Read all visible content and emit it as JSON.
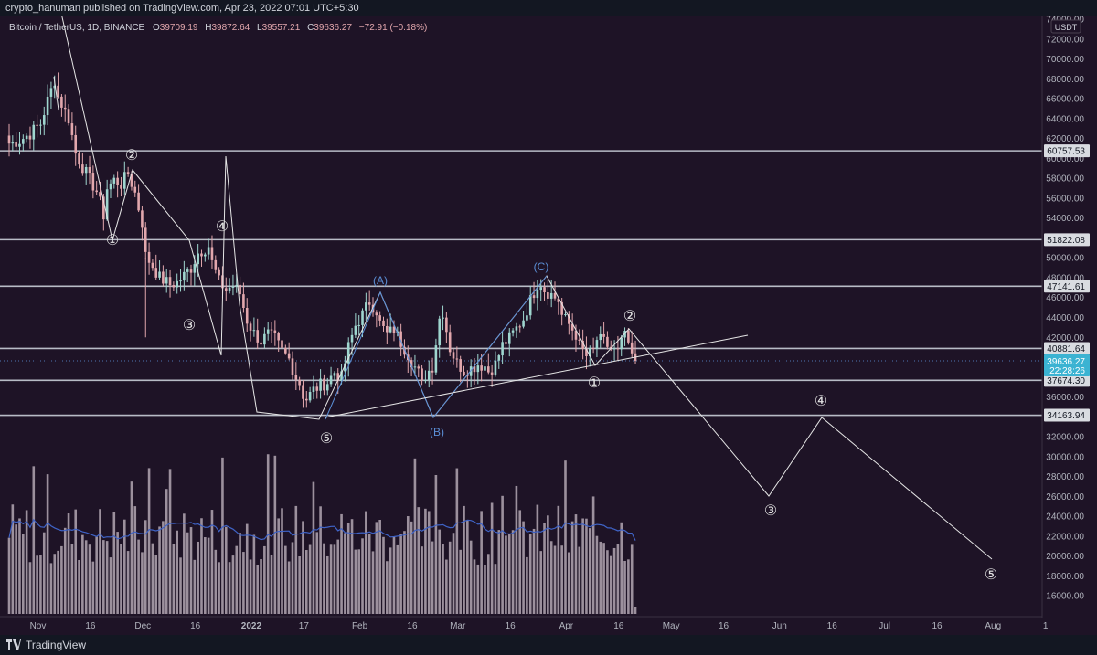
{
  "published_by": "crypto_hanuman published on TradingView.com, Apr 23, 2022 07:01 UTC+5:30",
  "brand": "TradingView",
  "currency_badge": "USDT",
  "legend": {
    "symbol": "Bitcoin / TetherUS, 1D, BINANCE",
    "open_label": "O",
    "open": "39709.19",
    "high_label": "H",
    "high": "39872.64",
    "low_label": "L",
    "low": "39557.21",
    "close_label": "C",
    "close": "39636.27",
    "change": "−72.91 (−0.18%)"
  },
  "colors": {
    "background": "#1e1326",
    "up": "#9fd6cf",
    "down": "#e2a7ad",
    "hline": "#b8bcc6",
    "wave_white": "#e5e5e5",
    "wave_blue": "#5b8fd6",
    "volume": "#b3a7b3",
    "volume_ma": "#3f63c6",
    "price_tag": "#3bb3d2"
  },
  "chart_data": {
    "type": "candlestick",
    "y_axis": {
      "min": 14000,
      "max": 74000,
      "ticks": [
        16000,
        18000,
        20000,
        22000,
        24000,
        26000,
        28000,
        30000,
        32000,
        34000,
        36000,
        38000,
        40000,
        42000,
        44000,
        46000,
        48000,
        50000,
        52000,
        54000,
        56000,
        58000,
        60000,
        62000,
        64000,
        66000,
        68000,
        70000,
        72000,
        74000
      ],
      "tick_labels": [
        "16000.00",
        "18000.00",
        "20000.00",
        "22000.00",
        "24000.00",
        "26000.00",
        "28000.00",
        "30000.00",
        "32000.00",
        "34000.00",
        "36000.00",
        "38000.00",
        "40000.00",
        "42000.00",
        "44000.00",
        "46000.00",
        "48000.00",
        "50000.00",
        "52000.00",
        "54000.00",
        "56000.00",
        "58000.00",
        "60000.00",
        "62000.00",
        "64000.00",
        "66000.00",
        "68000.00",
        "70000.00",
        "72000.00",
        "74000.00"
      ]
    },
    "x_axis": {
      "start_date": "2021-10-29",
      "ticks": [
        {
          "day": 3,
          "label": "Nov"
        },
        {
          "day": 18,
          "label": "16"
        },
        {
          "day": 33,
          "label": "Dec"
        },
        {
          "day": 48,
          "label": "16"
        },
        {
          "day": 64,
          "label": "2022"
        },
        {
          "day": 79,
          "label": "17"
        },
        {
          "day": 95,
          "label": "Feb"
        },
        {
          "day": 110,
          "label": "16"
        },
        {
          "day": 123,
          "label": "Mar"
        },
        {
          "day": 138,
          "label": "16"
        },
        {
          "day": 154,
          "label": "Apr"
        },
        {
          "day": 169,
          "label": "16"
        },
        {
          "day": 184,
          "label": "May"
        },
        {
          "day": 199,
          "label": "16"
        },
        {
          "day": 215,
          "label": "Jun"
        },
        {
          "day": 230,
          "label": "16"
        },
        {
          "day": 245,
          "label": "Jul"
        },
        {
          "day": 260,
          "label": "16"
        },
        {
          "day": 276,
          "label": "Aug"
        },
        {
          "day": 291,
          "label": "1"
        }
      ]
    },
    "horizontal_levels": [
      {
        "price": 60757.53,
        "label": "60757.53"
      },
      {
        "price": 51822.08,
        "label": "51822.08"
      },
      {
        "price": 47141.61,
        "label": "47141.61"
      },
      {
        "price": 40881.64,
        "label": "40881.64"
      },
      {
        "price": 37674.3,
        "label": "37674.30"
      },
      {
        "price": 34163.94,
        "label": "34163.94"
      }
    ],
    "last_price": {
      "price": 39636.27,
      "label": "39636.27",
      "countdown": "22:28:26"
    },
    "price_path": [
      [
        0,
        61500
      ],
      [
        3,
        61800
      ],
      [
        6,
        62500
      ],
      [
        9,
        63500
      ],
      [
        11,
        65800
      ],
      [
        13,
        67900
      ],
      [
        14,
        66200
      ],
      [
        17,
        64000
      ],
      [
        19,
        60500
      ],
      [
        22,
        58500
      ],
      [
        25,
        56700
      ],
      [
        27,
        54300
      ],
      [
        28,
        57000
      ],
      [
        30,
        57800
      ],
      [
        32,
        57400
      ],
      [
        34,
        58500
      ],
      [
        36,
        56500
      ],
      [
        38,
        53500
      ],
      [
        39,
        50200
      ],
      [
        41,
        49200
      ],
      [
        43,
        48000
      ],
      [
        46,
        47300
      ],
      [
        48,
        47500
      ],
      [
        50,
        48200
      ],
      [
        52,
        49000
      ],
      [
        54,
        50500
      ],
      [
        57,
        51200
      ],
      [
        58,
        49500
      ],
      [
        60,
        47600
      ],
      [
        62,
        46800
      ],
      [
        64,
        47200
      ],
      [
        66,
        46400
      ],
      [
        68,
        43700
      ],
      [
        70,
        42400
      ],
      [
        72,
        41600
      ],
      [
        74,
        42300
      ],
      [
        76,
        41800
      ],
      [
        78,
        40600
      ],
      [
        80,
        39800
      ],
      [
        82,
        38000
      ],
      [
        83,
        37400
      ],
      [
        84,
        36200
      ],
      [
        85,
        35800
      ],
      [
        87,
        36700
      ],
      [
        89,
        37200
      ],
      [
        91,
        37500
      ],
      [
        93,
        38500
      ],
      [
        95,
        37900
      ],
      [
        97,
        41000
      ],
      [
        99,
        43200
      ],
      [
        101,
        44300
      ],
      [
        103,
        45600
      ],
      [
        105,
        44700
      ],
      [
        106,
        43400
      ],
      [
        108,
        42300
      ],
      [
        110,
        42800
      ],
      [
        112,
        41500
      ],
      [
        114,
        40300
      ],
      [
        116,
        39000
      ],
      [
        117,
        38400
      ],
      [
        118,
        37200
      ],
      [
        119,
        38200
      ],
      [
        121,
        39100
      ],
      [
        123,
        43900
      ],
      [
        124,
        44600
      ],
      [
        126,
        40900
      ],
      [
        128,
        39400
      ],
      [
        130,
        38700
      ],
      [
        132,
        38900
      ],
      [
        134,
        39300
      ],
      [
        136,
        39100
      ],
      [
        137,
        38600
      ],
      [
        139,
        39300
      ],
      [
        141,
        41200
      ],
      [
        143,
        41900
      ],
      [
        145,
        42900
      ],
      [
        147,
        43900
      ],
      [
        149,
        45700
      ],
      [
        151,
        47400
      ],
      [
        152,
        47500
      ],
      [
        153,
        46800
      ],
      [
        155,
        46300
      ],
      [
        157,
        45700
      ],
      [
        158,
        44200
      ],
      [
        160,
        43300
      ],
      [
        162,
        42300
      ],
      [
        163,
        41100
      ],
      [
        165,
        40100
      ],
      [
        167,
        40600
      ],
      [
        168,
        41800
      ],
      [
        170,
        41500
      ],
      [
        172,
        40800
      ],
      [
        174,
        40400
      ],
      [
        175,
        41400
      ],
      [
        176,
        42600
      ],
      [
        177,
        40800
      ],
      [
        178,
        40200
      ],
      [
        179,
        39700
      ],
      [
        179.6,
        39636
      ]
    ],
    "volume": {
      "max": 3.0,
      "values_shape": "daily bars, relative 0-1"
    },
    "annotations": {
      "white_wave_labels": [
        "①",
        "②",
        "③",
        "④",
        "⑤",
        "①",
        "②",
        "③",
        "④",
        "⑤"
      ],
      "blue_wave_labels": [
        "(A)",
        "(B)",
        "(C)"
      ]
    }
  }
}
